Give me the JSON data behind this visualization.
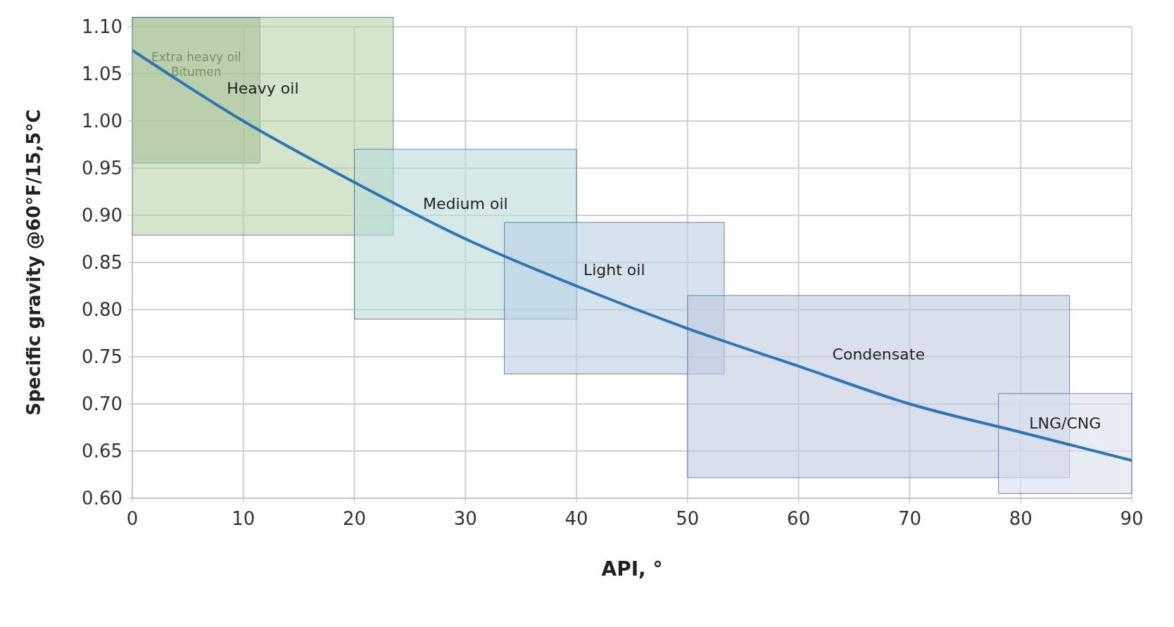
{
  "chart_data": {
    "type": "line",
    "xlabel": "API, °",
    "ylabel": "Specific gravity @60°F/15,5°C",
    "x": [
      0,
      10,
      20,
      30,
      40,
      50,
      60,
      70,
      80,
      90
    ],
    "series": [
      {
        "color": "#2e75b6",
        "values": [
          1.075,
          1.0,
          0.935,
          0.875,
          0.825,
          0.78,
          0.74,
          0.7,
          0.67,
          0.64
        ]
      }
    ],
    "xlim": [
      0,
      90
    ],
    "xticks": [
      0,
      10,
      20,
      30,
      40,
      50,
      60,
      70,
      80,
      90
    ],
    "ylim": [
      0.6,
      1.1
    ],
    "yticks": [
      {
        "value": 0.6,
        "label": "0.60"
      },
      {
        "value": 0.65,
        "label": "0.65"
      },
      {
        "value": 0.7,
        "label": "0.70"
      },
      {
        "value": 0.75,
        "label": "0.75"
      },
      {
        "value": 0.8,
        "label": "0.80"
      },
      {
        "value": 0.85,
        "label": "0.85"
      },
      {
        "value": 0.9,
        "label": "0.90"
      },
      {
        "value": 0.95,
        "label": "0.95"
      },
      {
        "value": 1.0,
        "label": "1.00"
      },
      {
        "value": 1.05,
        "label": "1.05"
      },
      {
        "value": 1.1,
        "label": "1.10"
      }
    ],
    "bands": [
      {
        "axis": "x",
        "from": 0,
        "to": 11.5,
        "label": "Extra heavy oil Bitumen",
        "color": "#8fa57a"
      },
      {
        "axis": "x",
        "from": 0,
        "to": 23.5,
        "label": "Heavy oil",
        "color": "#b9d4a8"
      },
      {
        "axis": "x",
        "from": 20,
        "to": 40,
        "label": "Medium oil",
        "color": "#b8dad9"
      },
      {
        "axis": "x",
        "from": 33.5,
        "to": 53.3,
        "label": "Light oil",
        "color": "#b9d0e4"
      },
      {
        "axis": "x",
        "from": 50,
        "to": 84.4,
        "label": "Condensate",
        "color": "#c0cae0"
      },
      {
        "axis": "x",
        "from": 78,
        "to": 90,
        "label": "LNG/CNG",
        "color": "#d8dfee"
      }
    ],
    "grid": true,
    "legend": false,
    "marker": "none",
    "line_style": "solid"
  }
}
